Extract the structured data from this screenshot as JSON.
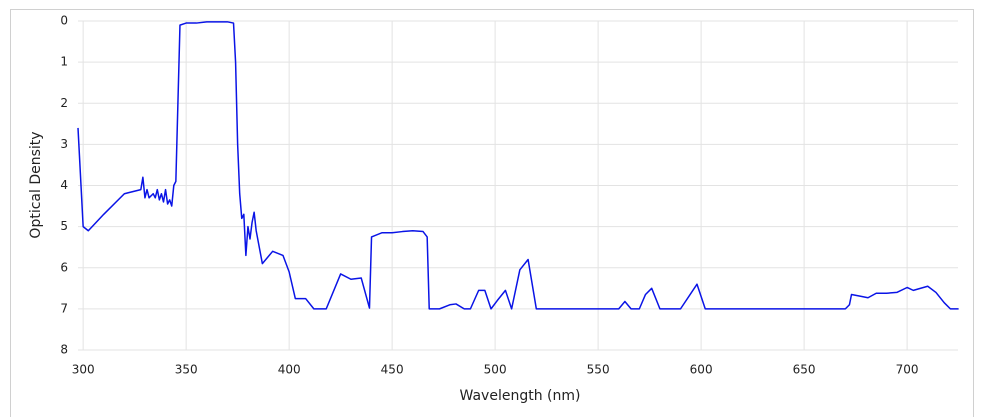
{
  "chart_data": {
    "type": "line",
    "x_label": "Wavelength (nm)",
    "y_label": "Optical Density",
    "xlim": [
      297.5,
      724.7
    ],
    "xticks": [
      300,
      350,
      400,
      450,
      500,
      550,
      600,
      650,
      700
    ],
    "ylim": [
      8,
      0
    ],
    "yticks": [
      0,
      1,
      2,
      3,
      4,
      5,
      6,
      7,
      8
    ],
    "grid": true,
    "color": "#0a14e6",
    "x": [
      297.5,
      300,
      302.5,
      310,
      320,
      328,
      329,
      330,
      331,
      332,
      334,
      335,
      336,
      337,
      338,
      339,
      340,
      341,
      342,
      343,
      344,
      345,
      346,
      347,
      350,
      355,
      360,
      370,
      373,
      374,
      375,
      376,
      377,
      378,
      379,
      380,
      381,
      382,
      383,
      384,
      387,
      392,
      397,
      400,
      403,
      408,
      412,
      418,
      425,
      430,
      435,
      439,
      440,
      445,
      450,
      455,
      460,
      465,
      467,
      468,
      473,
      478,
      481,
      485,
      488,
      492,
      495,
      498,
      501,
      505,
      508,
      512,
      516,
      520,
      560,
      563,
      566,
      570,
      573,
      576,
      580,
      590,
      598,
      602,
      670,
      672,
      673,
      678,
      681,
      685,
      690,
      695,
      700,
      703,
      710,
      714,
      718,
      721,
      725
    ],
    "values": [
      2.6,
      5.0,
      5.1,
      4.7,
      4.2,
      4.1,
      3.8,
      4.3,
      4.1,
      4.3,
      4.2,
      4.3,
      4.1,
      4.35,
      4.2,
      4.4,
      4.1,
      4.45,
      4.35,
      4.5,
      4.0,
      3.9,
      2.0,
      0.1,
      0.05,
      0.05,
      0.02,
      0.02,
      0.05,
      1.0,
      3.0,
      4.2,
      4.8,
      4.7,
      5.7,
      5.0,
      5.3,
      4.9,
      4.65,
      5.1,
      5.9,
      5.6,
      5.7,
      6.1,
      6.75,
      6.75,
      7.0,
      7.0,
      6.15,
      6.28,
      6.25,
      6.98,
      5.25,
      5.15,
      5.15,
      5.12,
      5.1,
      5.12,
      5.25,
      7.0,
      7.0,
      6.9,
      6.88,
      7.0,
      7.0,
      6.55,
      6.55,
      7.0,
      6.8,
      6.55,
      7.0,
      6.05,
      5.8,
      7.0,
      7.0,
      6.82,
      7.0,
      7.0,
      6.65,
      6.5,
      7.0,
      7.0,
      6.4,
      7.0,
      7.0,
      6.9,
      6.65,
      6.7,
      6.73,
      6.62,
      6.62,
      6.6,
      6.48,
      6.55,
      6.45,
      6.6,
      6.85,
      7.0,
      7.0
    ]
  }
}
